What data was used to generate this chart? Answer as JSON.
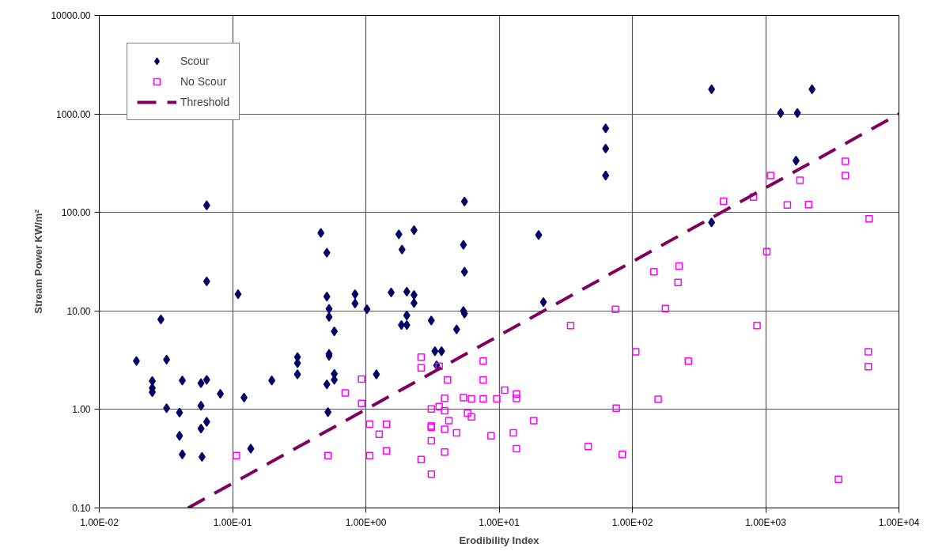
{
  "chart_data": {
    "type": "scatter",
    "xlabel": "Erodibility Index",
    "ylabel": "Stream Power KW/m²",
    "log": "xy",
    "grid": true,
    "legend": "top left",
    "xlim": [
      0.01,
      10000
    ],
    "ylim": [
      0.1,
      10000
    ],
    "xticks": [
      {
        "value": 0.01,
        "label": "1.00E-02"
      },
      {
        "value": 0.1,
        "label": "1.00E-01"
      },
      {
        "value": 1,
        "label": "1.00E+00"
      },
      {
        "value": 10,
        "label": "1.00E+01"
      },
      {
        "value": 100,
        "label": "1.00E+02"
      },
      {
        "value": 1000,
        "label": "1.00E+03"
      },
      {
        "value": 10000,
        "label": "1.00E+04"
      }
    ],
    "yticks": [
      {
        "value": 0.1,
        "label": "0.10"
      },
      {
        "value": 1,
        "label": "1.00"
      },
      {
        "value": 10,
        "label": "10.00"
      },
      {
        "value": 100,
        "label": "100.00"
      },
      {
        "value": 1000,
        "label": "1000.00"
      },
      {
        "value": 10000,
        "label": "10000.00"
      }
    ],
    "series": [
      {
        "name": "Scour",
        "marker": "diamond",
        "color": "#000066",
        "x": [
          0.064,
          0.064,
          0.11,
          0.46,
          0.51,
          0.51,
          0.53,
          0.53,
          0.58,
          0.53,
          0.53,
          0.58,
          0.58,
          0.51,
          0.52,
          0.83,
          0.83,
          1.02,
          1.2,
          0.029,
          0.019,
          0.032,
          0.025,
          0.025,
          0.025,
          0.042,
          0.058,
          0.064,
          0.081,
          0.122,
          0.032,
          0.04,
          0.058,
          0.064,
          0.058,
          0.04,
          0.042,
          0.059,
          0.137,
          0.197,
          0.307,
          0.307,
          0.307,
          5.5,
          1.77,
          1.87,
          2.3,
          5.4,
          5.5,
          1.55,
          2.03,
          2.3,
          2.3,
          2.03,
          1.85,
          2.03,
          3.1,
          5.4,
          5.5,
          4.8,
          3.3,
          3.7,
          3.4,
          21.5,
          19.8,
          393,
          2230,
          1295,
          1730,
          1690,
          63,
          63,
          63,
          393
        ],
        "values": [
          118,
          20,
          14.8,
          62,
          39,
          14,
          10.5,
          8.7,
          6.2,
          3.66,
          3.5,
          2.3,
          2.0,
          1.8,
          0.94,
          14.8,
          11.9,
          10.4,
          2.27,
          8.2,
          3.1,
          3.2,
          1.94,
          1.65,
          1.5,
          1.97,
          1.85,
          2.0,
          1.44,
          1.32,
          1.03,
          0.93,
          1.09,
          0.75,
          0.64,
          0.54,
          0.35,
          0.33,
          0.4,
          1.97,
          3.4,
          2.95,
          2.27,
          129,
          60,
          42,
          66,
          47,
          25,
          15.4,
          15.7,
          14.5,
          12,
          9.0,
          7.2,
          7.2,
          8.0,
          10,
          9.4,
          6.5,
          3.9,
          3.9,
          2.8,
          12.3,
          59,
          1780,
          1780,
          1020,
          1020,
          335,
          714,
          445,
          237,
          79
        ]
      },
      {
        "name": "No Scour",
        "marker": "square",
        "color": "#ff00ff",
        "x": [
          0.107,
          0.52,
          0.7,
          0.93,
          0.93,
          1.07,
          1.43,
          1.26,
          1.07,
          1.43,
          2.6,
          2.6,
          3.55,
          4.1,
          7.6,
          7.6,
          3.9,
          5.4,
          6.2,
          7.6,
          9.6,
          11,
          13.5,
          13.5,
          3.1,
          3.55,
          3.9,
          5.8,
          6.2,
          4.2,
          3.1,
          3.1,
          3.9,
          4.8,
          8.7,
          12.8,
          18.2,
          3.1,
          3.9,
          2.6,
          13.5,
          3.1,
          34.4,
          74.6,
          75.7,
          46.6,
          84,
          106,
          1090,
          1810,
          3960,
          3960,
          483,
          809,
          1455,
          2100,
          5980,
          1020,
          145,
          224,
          220,
          177,
          861,
          263,
          5890,
          5890,
          156,
          3515
        ],
        "values": [
          0.34,
          0.34,
          1.47,
          2.03,
          1.15,
          0.71,
          0.71,
          0.56,
          0.34,
          0.38,
          3.4,
          2.65,
          2.75,
          2.0,
          3.1,
          2.0,
          1.3,
          1.32,
          1.28,
          1.28,
          1.28,
          1.57,
          1.44,
          1.29,
          1.01,
          1.07,
          0.97,
          0.92,
          0.84,
          0.77,
          0.68,
          0.66,
          0.63,
          0.58,
          0.54,
          0.58,
          0.77,
          0.48,
          0.37,
          0.31,
          0.4,
          0.22,
          7.1,
          10.4,
          1.03,
          0.42,
          0.35,
          3.85,
          237,
          212,
          330,
          237,
          130,
          143,
          119,
          120,
          86,
          40,
          25,
          28.6,
          19.5,
          10.6,
          7.1,
          3.1,
          3.85,
          2.72,
          1.27,
          0.195
        ]
      },
      {
        "name": "Threshold",
        "type": "line",
        "line_style": "dashed",
        "color": "#800060",
        "x": [
          0.0464,
          10000
        ],
        "values": [
          0.1,
          1000
        ]
      }
    ]
  }
}
